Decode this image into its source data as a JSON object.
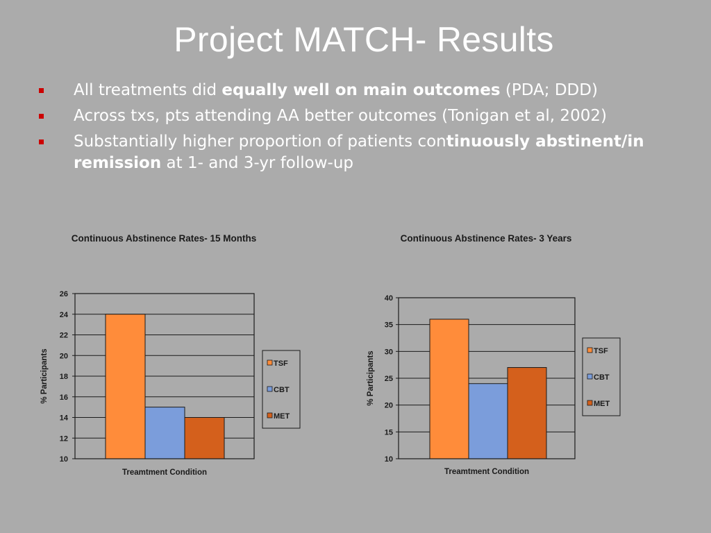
{
  "slide": {
    "title": "Project MATCH- Results",
    "bullets": [
      {
        "parts": [
          {
            "text": "All treatments did ",
            "bold": false
          },
          {
            "text": "equally well on main outcomes",
            "bold": true
          },
          {
            "text": " (PDA; DDD)",
            "bold": false
          }
        ]
      },
      {
        "parts": [
          {
            "text": "Across txs, pts attending AA better outcomes (Tonigan et al, 2002)",
            "bold": false
          }
        ]
      },
      {
        "parts": [
          {
            "text": "Substantially higher proportion of patients con",
            "bold": false
          },
          {
            "text": "tinuously abstinent/in remission",
            "bold": true
          },
          {
            "text": " at 1- and 3-yr follow-up",
            "bold": false
          }
        ]
      }
    ],
    "bullet_color": "#cc0000"
  },
  "chart_data": [
    {
      "type": "bar",
      "title": "Continuous Abstinence Rates- 15 Months",
      "xlabel": "Treamtment Condition",
      "ylabel": "% Participants",
      "ylim": [
        10,
        26
      ],
      "yticks": [
        10,
        12,
        14,
        16,
        18,
        20,
        22,
        24,
        26
      ],
      "grid": true,
      "legend_position": "right",
      "categories": [
        "TSF",
        "CBT",
        "MET"
      ],
      "values": [
        24,
        15,
        14
      ],
      "colors": [
        "#ff8c3a",
        "#7b9ddb",
        "#d4601c"
      ]
    },
    {
      "type": "bar",
      "title": "Continuous Abstinence Rates- 3 Years",
      "xlabel": "Treamtment Condition",
      "ylabel": "% Participants",
      "ylim": [
        10,
        40
      ],
      "yticks": [
        10,
        15,
        20,
        25,
        30,
        35,
        40
      ],
      "grid": true,
      "legend_position": "right",
      "categories": [
        "TSF",
        "CBT",
        "MET"
      ],
      "values": [
        36,
        24,
        27
      ],
      "colors": [
        "#ff8c3a",
        "#7b9ddb",
        "#d4601c"
      ]
    }
  ]
}
